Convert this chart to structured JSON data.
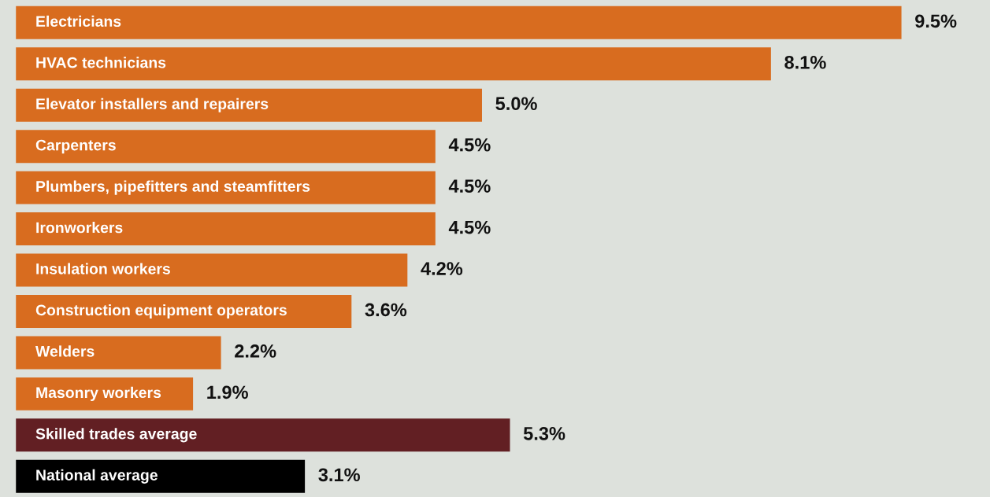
{
  "chart_data": {
    "type": "bar",
    "orientation": "horizontal",
    "categories": [
      "Electricians",
      "HVAC technicians",
      "Elevator installers and repairers",
      "Carpenters",
      "Plumbers, pipefitters and steamfitters",
      "Ironworkers",
      "Insulation workers",
      "Construction equipment operators",
      "Welders",
      "Masonry workers",
      "Skilled trades average",
      "National average"
    ],
    "values": [
      9.5,
      8.1,
      5.0,
      4.5,
      4.5,
      4.5,
      4.2,
      3.6,
      2.2,
      1.9,
      5.3,
      3.1
    ],
    "colors": [
      "#d86c1f",
      "#d86c1f",
      "#d86c1f",
      "#d86c1f",
      "#d86c1f",
      "#d86c1f",
      "#d86c1f",
      "#d86c1f",
      "#d86c1f",
      "#d86c1f",
      "#621f23",
      "#000000"
    ],
    "value_labels": [
      "9.5%",
      "8.1%",
      "5.0%",
      "4.5%",
      "4.5%",
      "4.5%",
      "4.2%",
      "3.6%",
      "2.2%",
      "1.9%",
      "5.3%",
      "3.1%"
    ],
    "legend": false
  }
}
